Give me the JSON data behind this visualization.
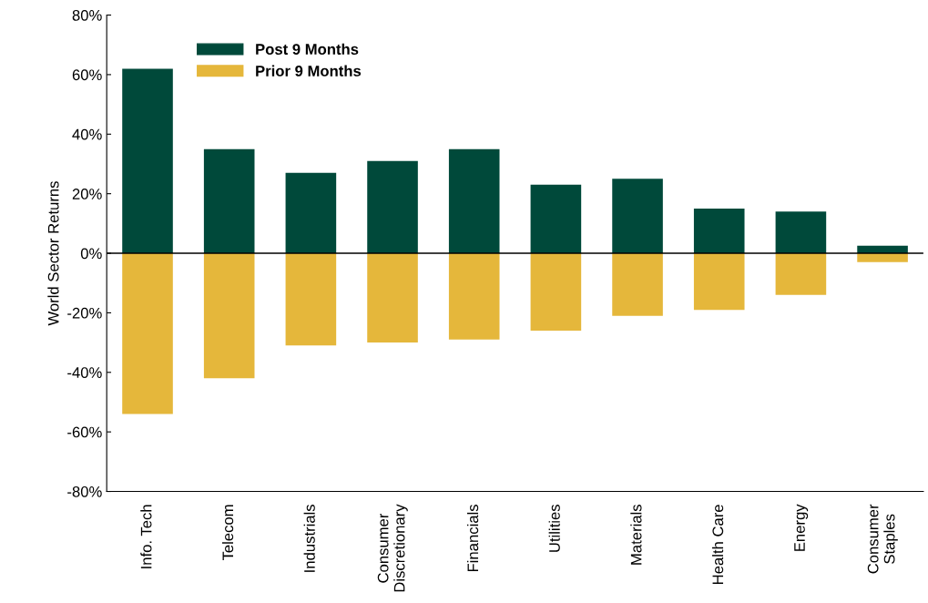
{
  "chart_data": {
    "type": "bar",
    "ylabel": "World Sector Returns",
    "categories": [
      "Info. Tech",
      "Telecom",
      "Industrials",
      "Consumer\nDiscretionary",
      "Financials",
      "Utilities",
      "Materials",
      "Health Care",
      "Energy",
      "Consumer\nStaples"
    ],
    "series": [
      {
        "name": "Post 9 Months",
        "color": "#00493a",
        "values": [
          62,
          35,
          27,
          31,
          35,
          23,
          25,
          15,
          14,
          2.5
        ]
      },
      {
        "name": "Prior 9 Months",
        "color": "#e5b73b",
        "values": [
          -54,
          -42,
          -31,
          -30,
          -29,
          -26,
          -21,
          -19,
          -14,
          -3
        ]
      }
    ],
    "stacked": true,
    "ylim": [
      -80,
      80
    ],
    "yticks": [
      {
        "value": -80,
        "label": "-80%"
      },
      {
        "value": -60,
        "label": "-60%"
      },
      {
        "value": -40,
        "label": "-40%"
      },
      {
        "value": -20,
        "label": "-20%"
      },
      {
        "value": 0,
        "label": "0%"
      },
      {
        "value": 20,
        "label": "20%"
      },
      {
        "value": 40,
        "label": "40%"
      },
      {
        "value": 60,
        "label": "60%"
      },
      {
        "value": 80,
        "label": "80%"
      }
    ],
    "ref_lines": [
      {
        "axis": "y",
        "value": 0,
        "color": "#000000"
      }
    ],
    "grid": false,
    "legend": "top left"
  }
}
